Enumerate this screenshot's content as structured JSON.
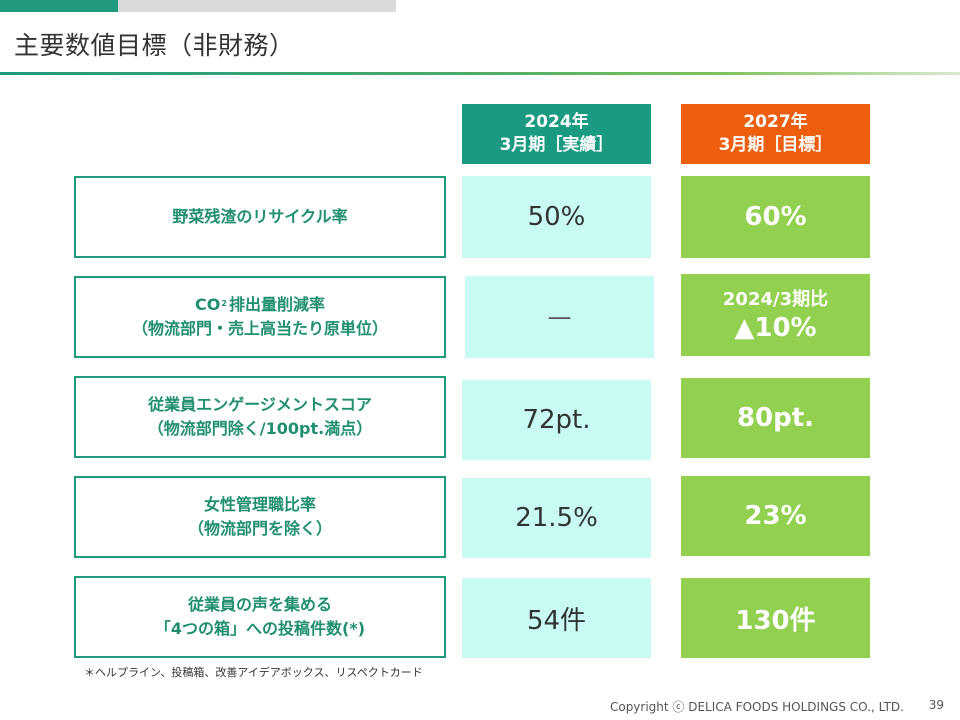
{
  "slide": {
    "title": "主要数値目標（非財務）",
    "columns": {
      "actual": {
        "line1": "2024年",
        "line2": "3月期［実績］"
      },
      "target": {
        "line1": "2027年",
        "line2": "3月期［目標］"
      }
    },
    "rows": [
      {
        "label_line1": "野菜残渣のリサイクル率",
        "actual": "50%",
        "target": "60%"
      },
      {
        "label_co2": "CO",
        "label_co2_sub": "2",
        "label_line1_rest": "排出量削減率",
        "label_line2": "（物流部門・売上高当たり原単位）",
        "actual": "—",
        "target_line1": "2024/3期比",
        "target_line2": "▲10%"
      },
      {
        "label_line1": "従業員エンゲージメントスコア",
        "label_line2": "（物流部門除く/100pt.満点）",
        "actual": "72pt.",
        "target": "80pt."
      },
      {
        "label_line1": "女性管理職比率",
        "label_line2": "（物流部門を除く）",
        "actual": "21.5%",
        "target": "23%"
      },
      {
        "label_line1": "従業員の声を集める",
        "label_line2": "「4つの箱」への投稿件数(*)",
        "actual": "54件",
        "target": "130件"
      }
    ],
    "footnote": "＊ヘルプライン、投稿箱、改善アイデアボックス、リスペクトカード",
    "copyright": "Copyright ⓒ DELICA FOODS HOLDINGS CO., LTD.",
    "page_number": "39"
  },
  "colors": {
    "brand_green": "#1f9a7f",
    "actual_header": "#1a9a80",
    "target_header": "#ed5f0f",
    "actual_cell": "#c9fbf5",
    "target_cell": "#92d050"
  }
}
